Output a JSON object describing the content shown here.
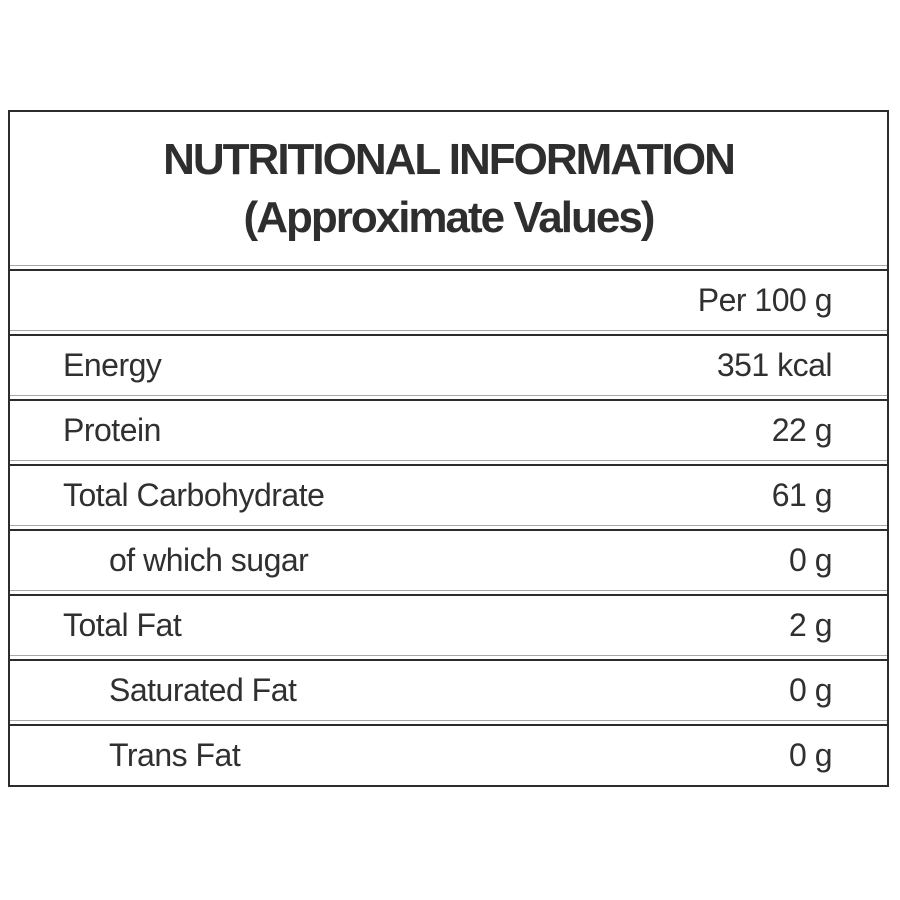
{
  "title": {
    "line1": "NUTRITIONAL INFORMATION",
    "line2": "(Approximate Values)"
  },
  "table": {
    "header": {
      "value": "Per 100 g"
    },
    "rows": [
      {
        "label": "Energy",
        "value": "351 kcal",
        "indent": false
      },
      {
        "label": "Protein",
        "value": "22 g",
        "indent": false
      },
      {
        "label": "Total Carbohydrate",
        "value": "61 g",
        "indent": false
      },
      {
        "label": "of which sugar",
        "value": "0 g",
        "indent": true
      },
      {
        "label": "Total Fat",
        "value": "2 g",
        "indent": false
      },
      {
        "label": "Saturated Fat",
        "value": "0 g",
        "indent": true
      },
      {
        "label": "Trans Fat",
        "value": "0 g",
        "indent": true
      }
    ]
  },
  "colors": {
    "line": "#2c2c2c",
    "hairline": "#a8a8a8",
    "text": "#303030",
    "bg": "#ffffff"
  }
}
